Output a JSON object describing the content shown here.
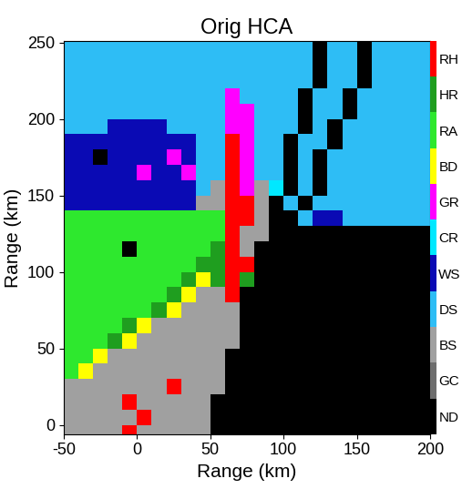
{
  "chart_data": {
    "type": "heatmap",
    "title": "Orig HCA",
    "x_label": "Range (km)",
    "y_label": "Range (km)",
    "xlim": [
      -50,
      200
    ],
    "ylim": [
      -6,
      251
    ],
    "xticks": [
      -50,
      0,
      50,
      100,
      150,
      200
    ],
    "yticks": [
      0,
      50,
      100,
      150,
      200,
      250
    ],
    "x_edges": [
      -50,
      -40,
      -30,
      -20,
      -10,
      0,
      10,
      20,
      30,
      40,
      50,
      60,
      70,
      80,
      90,
      100,
      110,
      120,
      130,
      140,
      150,
      160,
      170,
      180,
      190,
      200
    ],
    "y_edges": [
      -10,
      0,
      10,
      20,
      30,
      40,
      50,
      60,
      70,
      80,
      90,
      100,
      110,
      120,
      130,
      140,
      150,
      160,
      170,
      180,
      190,
      200,
      210,
      220,
      230,
      240,
      250,
      260
    ],
    "cells": [
      [
        2,
        2,
        2,
        2,
        10,
        2,
        2,
        2,
        2,
        2,
        0,
        0,
        0,
        0,
        0,
        0,
        0,
        0,
        0,
        0,
        0,
        0,
        0,
        0,
        0
      ],
      [
        2,
        2,
        2,
        2,
        2,
        10,
        2,
        2,
        2,
        2,
        0,
        0,
        0,
        0,
        0,
        0,
        0,
        0,
        0,
        0,
        0,
        0,
        0,
        0,
        0
      ],
      [
        2,
        2,
        2,
        2,
        10,
        2,
        2,
        2,
        2,
        2,
        0,
        0,
        0,
        0,
        0,
        0,
        0,
        0,
        0,
        0,
        0,
        0,
        0,
        0,
        0
      ],
      [
        2,
        2,
        2,
        2,
        2,
        2,
        2,
        10,
        2,
        2,
        2,
        0,
        0,
        0,
        0,
        0,
        0,
        0,
        0,
        0,
        0,
        0,
        0,
        0,
        0
      ],
      [
        8,
        7,
        2,
        2,
        2,
        2,
        2,
        2,
        2,
        2,
        2,
        0,
        0,
        0,
        0,
        0,
        0,
        0,
        0,
        0,
        0,
        0,
        0,
        0,
        0
      ],
      [
        8,
        8,
        7,
        2,
        2,
        2,
        2,
        2,
        2,
        2,
        2,
        0,
        0,
        0,
        0,
        0,
        0,
        0,
        0,
        0,
        0,
        0,
        0,
        0,
        0
      ],
      [
        8,
        8,
        8,
        9,
        7,
        2,
        2,
        2,
        2,
        2,
        2,
        2,
        0,
        0,
        0,
        0,
        0,
        0,
        0,
        0,
        0,
        0,
        0,
        0,
        0
      ],
      [
        8,
        8,
        8,
        8,
        9,
        7,
        2,
        2,
        2,
        2,
        2,
        2,
        0,
        0,
        0,
        0,
        0,
        0,
        0,
        0,
        0,
        0,
        0,
        0,
        0
      ],
      [
        8,
        8,
        8,
        8,
        8,
        8,
        9,
        7,
        2,
        2,
        2,
        2,
        0,
        0,
        0,
        0,
        0,
        0,
        0,
        0,
        0,
        0,
        0,
        0,
        0
      ],
      [
        8,
        8,
        8,
        8,
        8,
        8,
        8,
        9,
        7,
        2,
        2,
        10,
        0,
        0,
        0,
        0,
        0,
        0,
        0,
        0,
        0,
        0,
        0,
        0,
        0
      ],
      [
        8,
        8,
        8,
        8,
        8,
        8,
        8,
        8,
        9,
        7,
        9,
        10,
        9,
        0,
        0,
        0,
        0,
        0,
        0,
        0,
        0,
        0,
        0,
        0,
        0
      ],
      [
        8,
        8,
        8,
        8,
        8,
        8,
        8,
        8,
        8,
        9,
        9,
        10,
        10,
        0,
        0,
        0,
        0,
        0,
        0,
        0,
        0,
        0,
        0,
        0,
        0
      ],
      [
        8,
        8,
        8,
        8,
        0,
        8,
        8,
        8,
        8,
        8,
        9,
        10,
        2,
        0,
        0,
        0,
        0,
        0,
        0,
        0,
        0,
        0,
        0,
        0,
        0
      ],
      [
        8,
        8,
        8,
        8,
        8,
        8,
        8,
        8,
        8,
        8,
        8,
        10,
        2,
        2,
        0,
        0,
        0,
        0,
        0,
        0,
        0,
        0,
        0,
        0,
        0
      ],
      [
        8,
        8,
        8,
        8,
        8,
        8,
        8,
        8,
        8,
        8,
        8,
        10,
        10,
        2,
        0,
        0,
        3,
        4,
        4,
        3,
        3,
        3,
        3,
        3,
        3
      ],
      [
        4,
        4,
        4,
        4,
        4,
        4,
        4,
        4,
        4,
        2,
        2,
        10,
        10,
        2,
        0,
        3,
        0,
        3,
        3,
        3,
        3,
        3,
        3,
        3,
        3
      ],
      [
        4,
        4,
        4,
        4,
        4,
        4,
        4,
        4,
        4,
        3,
        2,
        10,
        6,
        2,
        5,
        0,
        3,
        0,
        3,
        3,
        3,
        3,
        3,
        3,
        3
      ],
      [
        4,
        4,
        4,
        4,
        4,
        6,
        4,
        4,
        6,
        3,
        3,
        10,
        6,
        3,
        3,
        0,
        3,
        0,
        3,
        3,
        3,
        3,
        3,
        3,
        3
      ],
      [
        4,
        4,
        0,
        4,
        4,
        4,
        4,
        6,
        4,
        3,
        3,
        10,
        6,
        3,
        3,
        0,
        3,
        0,
        3,
        3,
        3,
        3,
        3,
        3,
        3
      ],
      [
        4,
        4,
        4,
        4,
        4,
        4,
        4,
        4,
        4,
        3,
        3,
        10,
        6,
        3,
        3,
        0,
        3,
        3,
        0,
        3,
        3,
        3,
        3,
        3,
        3
      ],
      [
        3,
        3,
        3,
        4,
        4,
        4,
        4,
        3,
        3,
        3,
        3,
        6,
        6,
        3,
        3,
        3,
        0,
        3,
        0,
        3,
        3,
        3,
        3,
        3,
        3
      ],
      [
        3,
        3,
        3,
        3,
        3,
        3,
        3,
        3,
        3,
        3,
        3,
        6,
        6,
        3,
        3,
        3,
        0,
        3,
        3,
        0,
        3,
        3,
        3,
        3,
        3
      ],
      [
        3,
        3,
        3,
        3,
        3,
        3,
        3,
        3,
        3,
        3,
        3,
        6,
        3,
        3,
        3,
        3,
        0,
        3,
        3,
        0,
        3,
        3,
        3,
        3,
        3
      ],
      [
        3,
        3,
        3,
        3,
        3,
        3,
        3,
        3,
        3,
        3,
        3,
        3,
        3,
        3,
        3,
        3,
        3,
        0,
        3,
        3,
        0,
        3,
        3,
        3,
        3
      ],
      [
        3,
        3,
        3,
        3,
        3,
        3,
        3,
        3,
        3,
        3,
        3,
        3,
        3,
        3,
        3,
        3,
        3,
        0,
        3,
        3,
        0,
        3,
        3,
        3,
        3
      ],
      [
        3,
        3,
        3,
        3,
        3,
        3,
        3,
        3,
        3,
        3,
        3,
        3,
        3,
        3,
        3,
        3,
        3,
        0,
        3,
        3,
        0,
        3,
        3,
        3,
        3
      ],
      [
        3,
        3,
        3,
        3,
        3,
        3,
        3,
        3,
        3,
        3,
        3,
        3,
        3,
        3,
        3,
        3,
        3,
        0,
        3,
        3,
        0,
        3,
        3,
        3,
        3
      ]
    ],
    "colorbar": {
      "range": [
        -0.5,
        10.5
      ],
      "ticks": [
        {
          "value": 0,
          "label": "ND"
        },
        {
          "value": 1,
          "label": "GC"
        },
        {
          "value": 2,
          "label": "BS"
        },
        {
          "value": 3,
          "label": "DS"
        },
        {
          "value": 4,
          "label": "WS"
        },
        {
          "value": 5,
          "label": "CR"
        },
        {
          "value": 6,
          "label": "GR"
        },
        {
          "value": 7,
          "label": "BD"
        },
        {
          "value": 8,
          "label": "RA"
        },
        {
          "value": 9,
          "label": "HR"
        },
        {
          "value": 10,
          "label": "RH"
        }
      ],
      "colors": [
        "#000000",
        "#6e6e6e",
        "#a0a0a0",
        "#2ebdf5",
        "#0a0ab4",
        "#00e8ff",
        "#ff00ff",
        "#ffff00",
        "#2ee82e",
        "#1f9e1f",
        "#ff0000"
      ]
    }
  }
}
